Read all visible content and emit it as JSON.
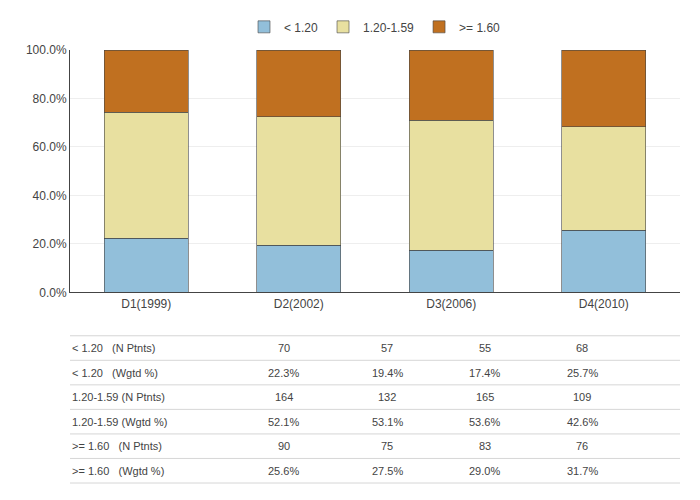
{
  "chart_data": {
    "type": "bar",
    "stacked": true,
    "categories": [
      "D1(1999)",
      "D2(2002)",
      "D3(2006)",
      "D4(2010)"
    ],
    "series": [
      {
        "name": "< 1.20",
        "color": "#92BFDA",
        "values": [
          22.3,
          19.4,
          17.4,
          25.7
        ]
      },
      {
        "name": "1.20-1.59",
        "color": "#E8E0A0",
        "values": [
          52.1,
          53.1,
          53.6,
          42.6
        ]
      },
      {
        "name": ">= 1.60",
        "color": "#C07020",
        "values": [
          25.6,
          27.5,
          29.0,
          31.7
        ]
      }
    ],
    "ylim": [
      0,
      100
    ],
    "yticks": [
      {
        "value": 0,
        "label": "0.0%"
      },
      {
        "value": 20,
        "label": "20.0%"
      },
      {
        "value": 40,
        "label": "40.0%"
      },
      {
        "value": 60,
        "label": "60.0%"
      },
      {
        "value": 80,
        "label": "80.0%"
      },
      {
        "value": 100,
        "label": "100.0%"
      }
    ],
    "grid": true,
    "legend": "top",
    "table": [
      [
        "< 1.20   (N Ptnts)",
        "70",
        "57",
        "55",
        "68"
      ],
      [
        "< 1.20   (Wgtd %)",
        "22.3%",
        "19.4%",
        "17.4%",
        "25.7%"
      ],
      [
        "1.20-1.59 (N Ptnts)",
        "164",
        "132",
        "165",
        "109"
      ],
      [
        "1.20-1.59 (Wgtd %)",
        "52.1%",
        "53.1%",
        "53.6%",
        "42.6%"
      ],
      [
        ">= 1.60   (N Ptnts)",
        "90",
        "75",
        "83",
        "76"
      ],
      [
        ">= 1.60   (Wgtd %)",
        "25.6%",
        "27.5%",
        "29.0%",
        "31.7%"
      ]
    ]
  }
}
